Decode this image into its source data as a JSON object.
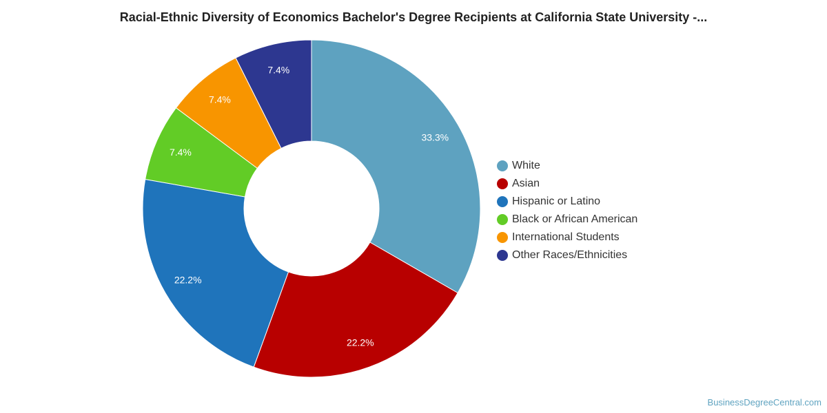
{
  "chart_data": {
    "type": "pie",
    "title": "Racial-Ethnic Diversity of Economics Bachelor's Degree Recipients at California State University -...",
    "donut": true,
    "categories": [
      "White",
      "Asian",
      "Hispanic or Latino",
      "Black or African American",
      "International Students",
      "Other Races/Ethnicities"
    ],
    "values": [
      33.3,
      22.2,
      22.2,
      7.4,
      7.4,
      7.4
    ],
    "value_labels": [
      "33.3%",
      "22.2%",
      "22.2%",
      "7.4%",
      "7.4%",
      "7.4%"
    ],
    "colors": [
      "#5ea2c0",
      "#b80000",
      "#1f74bb",
      "#62cc26",
      "#f89500",
      "#2d3790"
    ],
    "legend_position": "right"
  },
  "watermark": "BusinessDegreeCentral.com"
}
